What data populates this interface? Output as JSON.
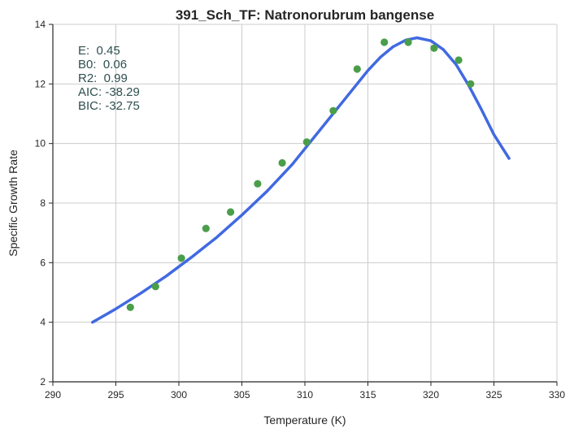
{
  "chart_data": {
    "type": "scatter",
    "title": "391_Sch_TF: Natronorubrum bangense",
    "xlabel": "Temperature (K)",
    "ylabel": "Specific Growth Rate",
    "xlim": [
      290,
      330
    ],
    "ylim": [
      2,
      14
    ],
    "x_ticks": [
      290,
      295,
      300,
      305,
      310,
      315,
      320,
      325,
      330
    ],
    "y_ticks": [
      2,
      4,
      6,
      8,
      10,
      12,
      14
    ],
    "grid": true,
    "annotations": [
      "E:  0.45",
      "B0:  0.06",
      "R2:  0.99",
      "AIC: -38.29",
      "BIC: -32.75"
    ],
    "colors": {
      "points": "#4a9e4a",
      "fit_line": "#4169e1",
      "grid": "#cccccc",
      "axis": "#262626"
    },
    "series": [
      {
        "type": "scatter",
        "x": [
          296.15,
          298.15,
          300.2,
          302.15,
          304.1,
          306.25,
          308.2,
          310.15,
          312.25,
          314.15,
          316.3,
          318.2,
          320.25,
          322.2,
          323.15
        ],
        "y": [
          4.5,
          5.2,
          6.15,
          7.15,
          7.7,
          8.65,
          9.35,
          10.05,
          11.1,
          12.5,
          13.4,
          13.4,
          13.2,
          12.8,
          12.0
        ]
      },
      {
        "type": "line",
        "x": [
          293.15,
          295,
          297,
          299,
          301,
          303,
          305,
          307,
          309,
          311,
          313,
          315,
          316,
          317,
          318,
          318.9,
          320,
          321,
          322,
          323,
          324,
          325,
          326.2
        ],
        "y": [
          4.0,
          4.45,
          4.98,
          5.55,
          6.18,
          6.85,
          7.6,
          8.4,
          9.3,
          10.35,
          11.4,
          12.45,
          12.9,
          13.25,
          13.47,
          13.55,
          13.45,
          13.15,
          12.65,
          11.95,
          11.15,
          10.3,
          9.5
        ]
      }
    ]
  }
}
